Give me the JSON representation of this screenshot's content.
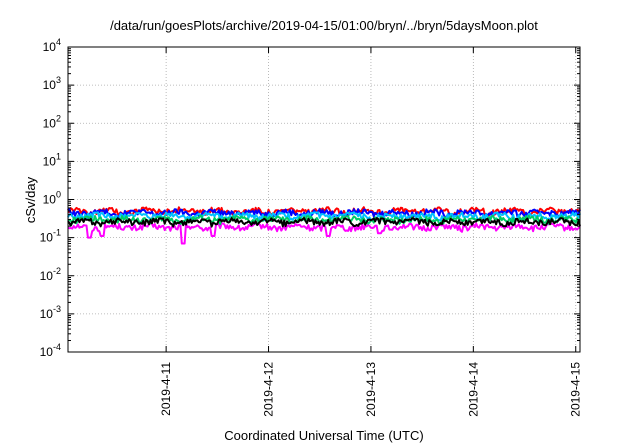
{
  "chart_data": {
    "type": "line",
    "title": "/data/run/goesPlots/archive/2019-04-15/01:00/bryn/../bryn/5daysMoon.plot",
    "xlabel": "Coordinated Universal Time (UTC)",
    "ylabel": "cSv/day",
    "y_scale": "log",
    "ylim": [
      0.0001,
      10000
    ],
    "y_ticks": [
      {
        "value": 0.0001,
        "base": "10",
        "exp": "-4"
      },
      {
        "value": 0.001,
        "base": "10",
        "exp": "-3"
      },
      {
        "value": 0.01,
        "base": "10",
        "exp": "-2"
      },
      {
        "value": 0.1,
        "base": "10",
        "exp": "-1"
      },
      {
        "value": 1,
        "base": "10",
        "exp": "0"
      },
      {
        "value": 10,
        "base": "10",
        "exp": "1"
      },
      {
        "value": 100,
        "base": "10",
        "exp": "2"
      },
      {
        "value": 1000,
        "base": "10",
        "exp": "3"
      },
      {
        "value": 10000,
        "base": "10",
        "exp": "4"
      }
    ],
    "xlim": [
      "2019-04-10T01:00",
      "2019-04-15T01:00"
    ],
    "x_ticks": [
      "2019-4-11",
      "2019-4-12",
      "2019-4-13",
      "2019-4-14",
      "2019-4-15"
    ],
    "grid": true,
    "series": [
      {
        "color": "#ff00ff",
        "base": 0.19,
        "dips": [
          [
            "2019-04-10T06:00",
            0.1
          ],
          [
            "2019-04-10T09:00",
            0.11
          ],
          [
            "2019-04-11T04:00",
            0.07
          ],
          [
            "2019-04-11T11:00",
            0.11
          ],
          [
            "2019-04-12T14:00",
            0.11
          ],
          [
            "2019-04-13T02:00",
            0.13
          ]
        ]
      },
      {
        "color": "#ff0000",
        "base": 0.5,
        "dips": []
      },
      {
        "color": "#0000ff",
        "base": 0.45,
        "dips": []
      },
      {
        "color": "#00c0ff",
        "base": 0.37,
        "dips": []
      },
      {
        "color": "#00cc66",
        "base": 0.3,
        "dips": []
      },
      {
        "color": "#000000",
        "base": 0.26,
        "dips": []
      }
    ]
  }
}
